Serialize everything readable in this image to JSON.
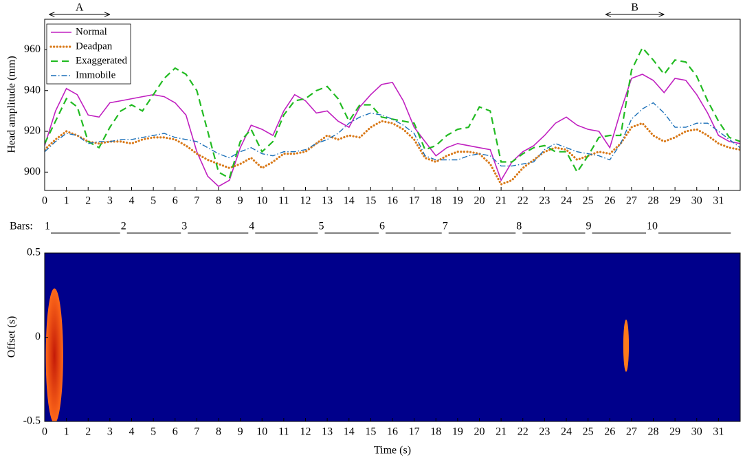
{
  "chart_data": [
    {
      "type": "line",
      "ylabel": "Head amplitude (mm)",
      "xlim": [
        0,
        32
      ],
      "ylim": [
        891,
        975
      ],
      "xticks": [
        0,
        1,
        2,
        3,
        4,
        5,
        6,
        7,
        8,
        9,
        10,
        11,
        12,
        13,
        14,
        15,
        16,
        17,
        18,
        19,
        20,
        21,
        22,
        23,
        24,
        25,
        26,
        27,
        28,
        29,
        30,
        31
      ],
      "yticks": [
        900,
        920,
        940,
        960
      ],
      "legend": "upper left",
      "x": [
        0,
        0.5,
        1,
        1.5,
        2,
        2.5,
        3,
        3.5,
        4,
        4.5,
        5,
        5.5,
        6,
        6.5,
        7,
        7.5,
        8,
        8.5,
        9,
        9.5,
        10,
        10.5,
        11,
        11.5,
        12,
        12.5,
        13,
        13.5,
        14,
        14.5,
        15,
        15.5,
        16,
        16.5,
        17,
        17.5,
        18,
        18.5,
        19,
        19.5,
        20,
        20.5,
        21,
        21.5,
        22,
        22.5,
        23,
        23.5,
        24,
        24.5,
        25,
        25.5,
        26,
        26.5,
        27,
        27.5,
        28,
        28.5,
        29,
        29.5,
        30,
        30.5,
        31,
        31.5,
        32
      ],
      "series": [
        {
          "name": "Normal",
          "color": "#c020c0",
          "style": "solid",
          "values": [
            913,
            930,
            941,
            938,
            928,
            927,
            934,
            935,
            936,
            937,
            938,
            937,
            934,
            928,
            910,
            898,
            893,
            896,
            912,
            923,
            921,
            918,
            930,
            938,
            935,
            929,
            930,
            925,
            922,
            932,
            938,
            943,
            944,
            935,
            922,
            915,
            908,
            912,
            914,
            913,
            912,
            911,
            896,
            905,
            910,
            913,
            918,
            924,
            927,
            923,
            921,
            920,
            912,
            930,
            946,
            948,
            945,
            939,
            946,
            945,
            938,
            929,
            918,
            915,
            914
          ]
        },
        {
          "name": "Deadpan",
          "color": "#d97a1a",
          "style": "dotted",
          "values": [
            911,
            916,
            920,
            918,
            915,
            914,
            915,
            915,
            914,
            916,
            917,
            917,
            916,
            913,
            909,
            906,
            904,
            902,
            904,
            907,
            902,
            905,
            909,
            909,
            910,
            914,
            918,
            916,
            918,
            917,
            922,
            925,
            924,
            921,
            916,
            907,
            905,
            908,
            910,
            910,
            909,
            904,
            894,
            896,
            902,
            906,
            910,
            912,
            911,
            906,
            908,
            910,
            909,
            914,
            922,
            924,
            918,
            915,
            917,
            920,
            921,
            918,
            914,
            912,
            911
          ]
        },
        {
          "name": "Exaggerated",
          "color": "#22bb22",
          "style": "dashed",
          "values": [
            914,
            925,
            936,
            932,
            915,
            912,
            922,
            930,
            933,
            930,
            938,
            946,
            951,
            948,
            940,
            920,
            900,
            897,
            915,
            921,
            910,
            915,
            928,
            935,
            936,
            940,
            942,
            936,
            925,
            933,
            933,
            927,
            926,
            925,
            924,
            911,
            913,
            918,
            921,
            922,
            932,
            930,
            905,
            905,
            909,
            912,
            913,
            910,
            910,
            900,
            908,
            917,
            918,
            918,
            950,
            961,
            955,
            948,
            955,
            954,
            947,
            935,
            925,
            917,
            915
          ]
        },
        {
          "name": "Immobile",
          "color": "#1a6fb8",
          "style": "dashdot",
          "values": [
            910,
            915,
            919,
            918,
            914,
            915,
            915,
            916,
            916,
            917,
            918,
            919,
            917,
            916,
            915,
            912,
            909,
            907,
            910,
            912,
            909,
            908,
            910,
            910,
            911,
            914,
            916,
            919,
            924,
            927,
            929,
            928,
            926,
            923,
            919,
            908,
            906,
            906,
            906,
            908,
            909,
            908,
            903,
            903,
            904,
            905,
            911,
            914,
            912,
            910,
            909,
            908,
            906,
            914,
            926,
            931,
            934,
            929,
            922,
            922,
            924,
            924,
            920,
            916,
            912
          ]
        }
      ],
      "annotations": [
        {
          "text": "A",
          "x": [
            0.2,
            3.0
          ]
        },
        {
          "text": "B",
          "x": [
            25.8,
            28.5
          ]
        }
      ],
      "bar_markers": {
        "label": "Bars:",
        "labels": [
          "1",
          "2",
          "3",
          "4",
          "5",
          "6",
          "7",
          "8",
          "9",
          "10"
        ],
        "times": [
          0,
          3.5,
          6.3,
          9.4,
          12.6,
          15.4,
          18.3,
          21.7,
          24.9,
          27.7
        ],
        "end": 31.6
      }
    },
    {
      "type": "heatmap",
      "xlabel": "Time (s)",
      "ylabel": "Offset (s)",
      "xlim": [
        0,
        32
      ],
      "ylim": [
        -0.5,
        0.5
      ],
      "xticks": [
        0,
        1,
        2,
        3,
        4,
        5,
        6,
        7,
        8,
        9,
        10,
        11,
        12,
        13,
        14,
        15,
        16,
        17,
        18,
        19,
        20,
        21,
        22,
        23,
        24,
        25,
        26,
        27,
        28,
        29,
        30,
        31
      ],
      "yticks": [
        -0.5,
        0,
        0.5
      ],
      "background": "#00008b",
      "blobs": [
        {
          "x": 0.45,
          "y": -0.11,
          "dx": 0.4,
          "dy": 0.4,
          "color": "#c41a08",
          "edge_color": "#ff6a1a"
        },
        {
          "x": 26.75,
          "y": -0.05,
          "dx": 0.13,
          "dy": 0.155,
          "color": "#ff7a1a",
          "edge_color": "#ff7a1a"
        }
      ]
    }
  ]
}
